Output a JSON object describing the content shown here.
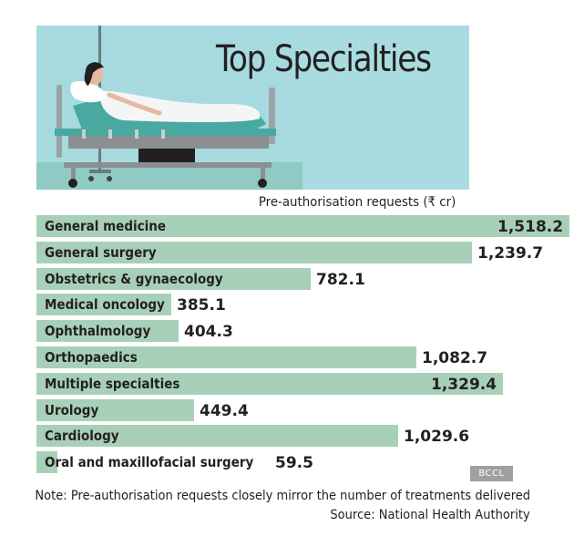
{
  "chart_data": {
    "type": "bar",
    "orientation": "horizontal",
    "title": "Top Specialties",
    "unit_label": "Pre-authorisation requests (₹ cr)",
    "categories": [
      "General medicine",
      "General surgery",
      "Obstetrics & gynaecology",
      "Medical oncology",
      "Ophthalmology",
      "Orthopaedics",
      "Multiple specialties",
      "Urology",
      "Cardiology",
      "Oral and maxillofacial surgery"
    ],
    "values": [
      1518.2,
      1239.7,
      782.1,
      385.1,
      404.3,
      1082.7,
      1329.4,
      449.4,
      1029.6,
      59.5
    ],
    "value_labels": [
      "1,518.2",
      "1,239.7",
      "782.1",
      "385.1",
      "404.3",
      "1,082.7",
      "1,329.4",
      "449.4",
      "1,029.6",
      "59.5"
    ],
    "bar_color": "#a8d0b8",
    "grid": false,
    "legend": "none"
  },
  "watermark": "BCCL",
  "note": "Note: Pre-authorisation requests closely mirror the number of treatments delivered",
  "source": "Source: National Health Authority",
  "header_illustration": "hospital-bed-patient",
  "colors": {
    "header_bg": "#a6dade",
    "bar": "#a8d0b8",
    "text": "#231f20"
  }
}
